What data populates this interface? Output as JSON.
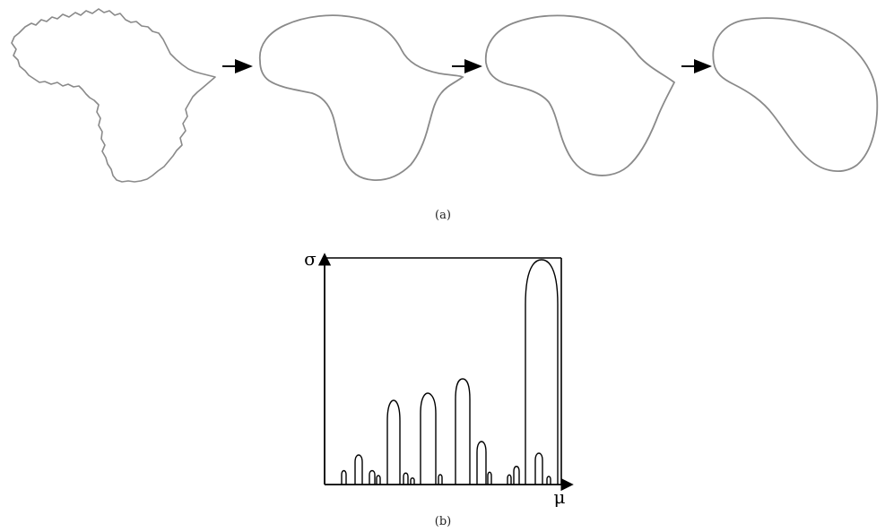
{
  "panel_a": {
    "caption": "(a)",
    "stages": [
      {
        "name": "original-outline"
      },
      {
        "name": "smoothed-outline-1"
      },
      {
        "name": "smoothed-outline-2"
      },
      {
        "name": "smoothed-outline-3"
      }
    ],
    "colors": {
      "outline": "#8a8a8a",
      "arrow": "#000000"
    }
  },
  "panel_b": {
    "caption": "(b)",
    "y_axis_label": "σ",
    "x_axis_label": "μ",
    "colors": {
      "line": "#000000"
    }
  }
}
